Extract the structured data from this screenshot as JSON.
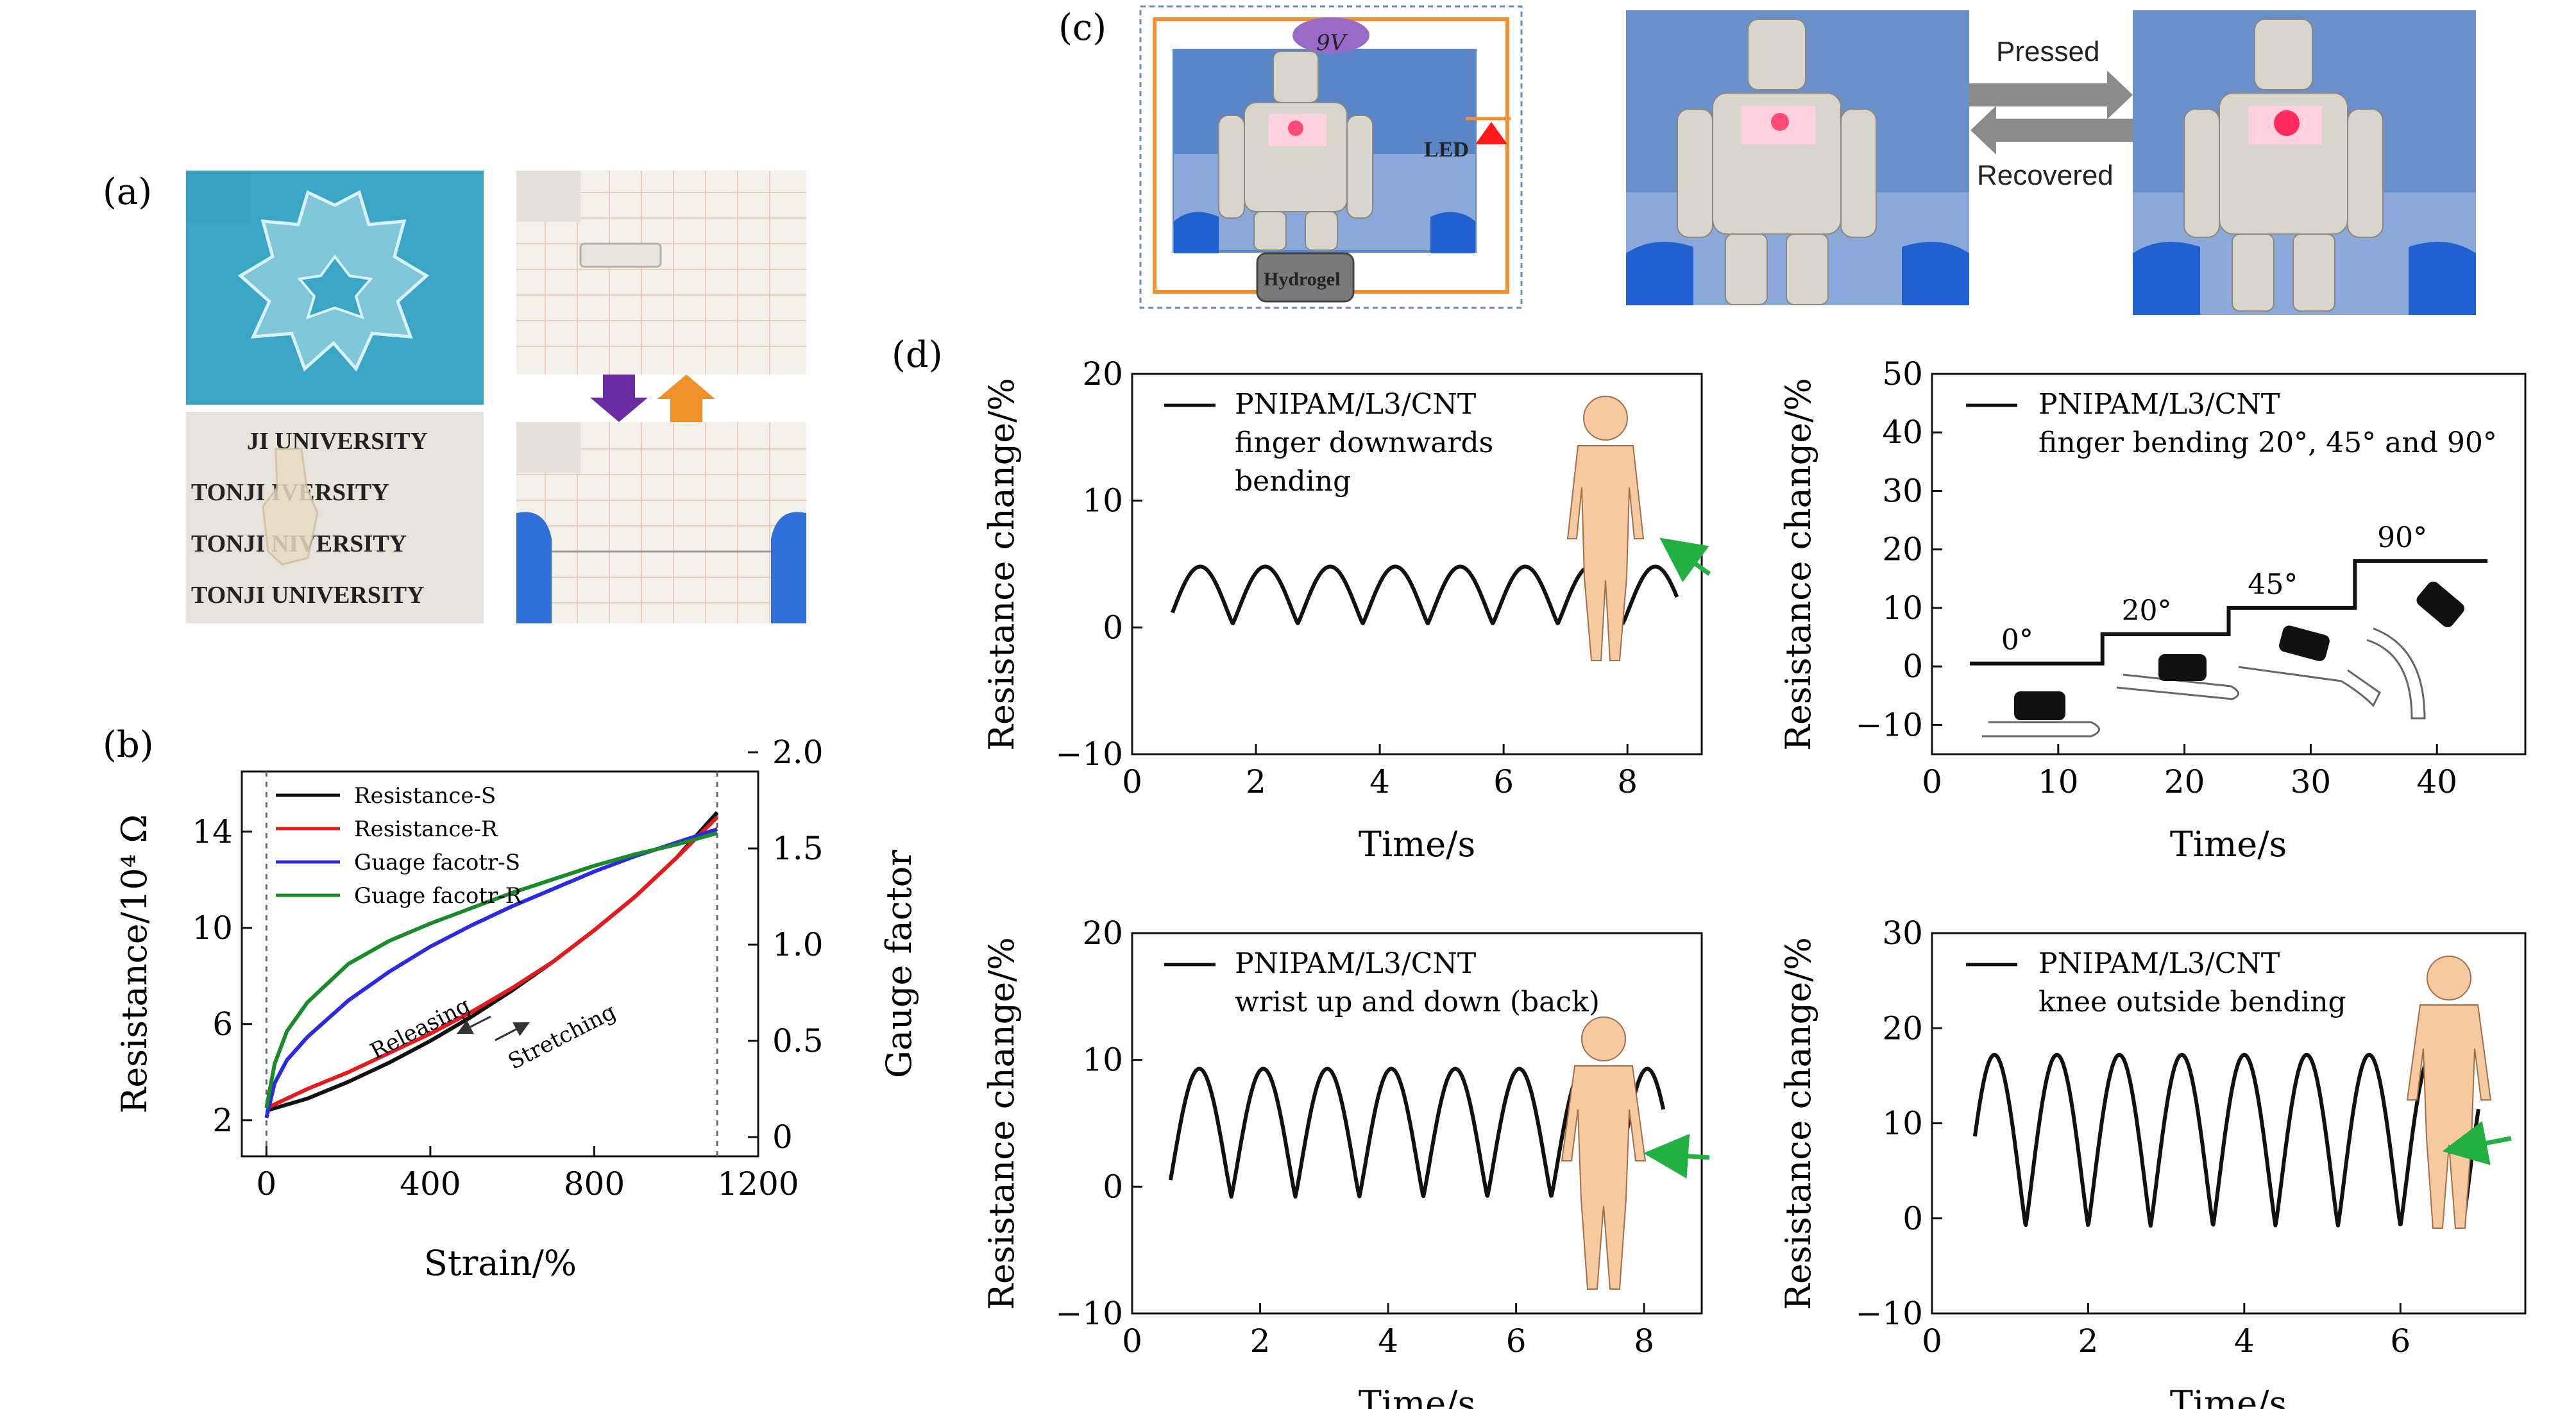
{
  "panels": {
    "a": "(a)",
    "b": "(b)",
    "c": "(c)",
    "d": "(d)"
  },
  "photo_a": {
    "paper_lines": [
      "JI    UNIVERSITY",
      "TONJI   IVERSITY",
      "TONJI   NIVERSITY",
      "TONJI    UNIVERSITY"
    ]
  },
  "photo_c": {
    "battery": "9V",
    "led": "LED",
    "hydrogel": "Hydrogel",
    "pressed": "Pressed",
    "recovered": "Recovered"
  },
  "colors": {
    "black": "#111111",
    "red": "#e41a1c",
    "blue": "#2a2ae0",
    "green": "#1a8a2a",
    "arrow_purple": "#6a2ca0",
    "arrow_orange": "#f0902a",
    "pointer_green": "#22b040"
  },
  "chart_data": [
    {
      "id": "b",
      "type": "line",
      "xlabel": "Strain/%",
      "ylabel": "Resistance/10⁴ Ω",
      "y2label": "Gauge factor",
      "xlim": [
        -60,
        1200
      ],
      "ylim": [
        0.5,
        16.5
      ],
      "y2lim": [
        -0.1,
        1.9
      ],
      "xticks": [
        "0",
        "400",
        "800",
        "1200"
      ],
      "yticks": [
        "2",
        "6",
        "10",
        "14"
      ],
      "y2ticks": [
        "0",
        "0.5",
        "1.0",
        "1.5",
        "2.0"
      ],
      "xtick_values": [
        0,
        400,
        800,
        1200
      ],
      "ytick_values": [
        2,
        6,
        10,
        14
      ],
      "y2tick_values": [
        0,
        0.5,
        1.0,
        1.5,
        2.0
      ],
      "vlines": [
        0,
        1100
      ],
      "annotations": [
        "Releasing",
        "Stretching"
      ],
      "legend_position": "top-left",
      "series": [
        {
          "name": "Resistance-S",
          "color": "#111111",
          "axis": "left",
          "x": [
            0,
            100,
            200,
            300,
            400,
            500,
            600,
            700,
            800,
            900,
            1000,
            1100
          ],
          "values": [
            2.4,
            2.9,
            3.6,
            4.4,
            5.3,
            6.3,
            7.4,
            8.6,
            9.9,
            11.3,
            12.9,
            14.8
          ]
        },
        {
          "name": "Resistance-R",
          "color": "#e41a1c",
          "axis": "left",
          "x": [
            0,
            100,
            200,
            300,
            400,
            500,
            600,
            700,
            800,
            900,
            1000,
            1100
          ],
          "values": [
            2.5,
            3.3,
            4.0,
            4.8,
            5.6,
            6.5,
            7.5,
            8.6,
            9.9,
            11.3,
            12.9,
            14.6
          ]
        },
        {
          "name": "Guage facotr-S",
          "color": "#2a2ae0",
          "axis": "right",
          "x": [
            0,
            20,
            50,
            100,
            200,
            300,
            400,
            500,
            600,
            700,
            800,
            900,
            1000,
            1100
          ],
          "values": [
            0.1,
            0.28,
            0.4,
            0.52,
            0.71,
            0.86,
            0.99,
            1.1,
            1.2,
            1.29,
            1.38,
            1.46,
            1.53,
            1.6
          ]
        },
        {
          "name": "Guage facotr-R",
          "color": "#1a8a2a",
          "axis": "right",
          "x": [
            0,
            20,
            50,
            100,
            200,
            300,
            400,
            500,
            600,
            700,
            800,
            900,
            1000,
            1100
          ],
          "values": [
            0.15,
            0.38,
            0.55,
            0.7,
            0.9,
            1.02,
            1.11,
            1.19,
            1.27,
            1.34,
            1.41,
            1.47,
            1.52,
            1.58
          ]
        }
      ]
    },
    {
      "id": "d1",
      "type": "line",
      "xlabel": "Time/s",
      "ylabel": "Resistance change/%",
      "xlim": [
        0,
        9.2
      ],
      "ylim": [
        -10,
        20
      ],
      "xticks": [
        "0",
        "2",
        "4",
        "6",
        "8"
      ],
      "yticks": [
        "−10",
        "0",
        "10",
        "20"
      ],
      "xtick_values": [
        0,
        2,
        4,
        6,
        8
      ],
      "ytick_values": [
        -10,
        0,
        10,
        20
      ],
      "legend_position": "top-left",
      "pulse": {
        "start": 0.65,
        "end": 8.8,
        "period": 1.05,
        "low": 0.3,
        "high": 4.8,
        "first_peak": 1.1
      },
      "series": [
        {
          "name": "PNIPAM/L3/CNT",
          "color": "#111111"
        }
      ],
      "legend_lines": [
        "PNIPAM/L3/CNT",
        "finger downwards",
        "bending"
      ]
    },
    {
      "id": "d2",
      "type": "line",
      "xlabel": "Time/s",
      "ylabel": "Resistance change/%",
      "xlim": [
        0,
        47
      ],
      "ylim": [
        -15,
        50
      ],
      "xticks": [
        "0",
        "10",
        "20",
        "30",
        "40"
      ],
      "yticks": [
        "−10",
        "0",
        "10",
        "20",
        "30",
        "40",
        "50"
      ],
      "xtick_values": [
        0,
        10,
        20,
        30,
        40
      ],
      "ytick_values": [
        -10,
        0,
        10,
        20,
        30,
        40,
        50
      ],
      "legend_position": "top-left",
      "steps": [
        {
          "x0": 3,
          "x1": 13.5,
          "y": 0.5,
          "label": "0°"
        },
        {
          "x0": 13.5,
          "x1": 23.5,
          "y": 5.5,
          "label": "20°"
        },
        {
          "x0": 23.5,
          "x1": 33.5,
          "y": 10,
          "label": "45°"
        },
        {
          "x0": 33.5,
          "x1": 44,
          "y": 18,
          "label": "90°"
        }
      ],
      "series": [
        {
          "name": "PNIPAM/L3/CNT",
          "color": "#111111"
        }
      ],
      "legend_lines": [
        "PNIPAM/L3/CNT",
        "finger bending 20°,  45° and 90°"
      ]
    },
    {
      "id": "d3",
      "type": "line",
      "xlabel": "Time/s",
      "ylabel": "Resistance change/%",
      "xlim": [
        0,
        8.9
      ],
      "ylim": [
        -10,
        20
      ],
      "xticks": [
        "0",
        "2",
        "4",
        "6",
        "8"
      ],
      "yticks": [
        "−10",
        "0",
        "10",
        "20"
      ],
      "xtick_values": [
        0,
        2,
        4,
        6,
        8
      ],
      "ytick_values": [
        -10,
        0,
        10,
        20
      ],
      "legend_position": "top-left",
      "pulse": {
        "start": 0.6,
        "end": 8.3,
        "period": 1.0,
        "low": -0.8,
        "high": 9.3,
        "first_peak": 1.05
      },
      "series": [
        {
          "name": "PNIPAM/L3/CNT",
          "color": "#111111"
        }
      ],
      "legend_lines": [
        "PNIPAM/L3/CNT",
        "wrist up and down (back)"
      ]
    },
    {
      "id": "d4",
      "type": "line",
      "xlabel": "Time/s",
      "ylabel": "Resistance change/%",
      "xlim": [
        0,
        7.6
      ],
      "ylim": [
        -10,
        30
      ],
      "xticks": [
        "0",
        "2",
        "4",
        "6"
      ],
      "yticks": [
        "−10",
        "0",
        "10",
        "20",
        "30"
      ],
      "xtick_values": [
        0,
        2,
        4,
        6
      ],
      "ytick_values": [
        -10,
        0,
        10,
        20,
        30
      ],
      "legend_position": "top-left",
      "pulse": {
        "start": 0.55,
        "end": 7.0,
        "period": 0.8,
        "low": -0.8,
        "high": 17.2,
        "first_peak": 0.8
      },
      "series": [
        {
          "name": "PNIPAM/L3/CNT",
          "color": "#111111"
        }
      ],
      "legend_lines": [
        "PNIPAM/L3/CNT",
        "knee outside bending"
      ]
    }
  ]
}
